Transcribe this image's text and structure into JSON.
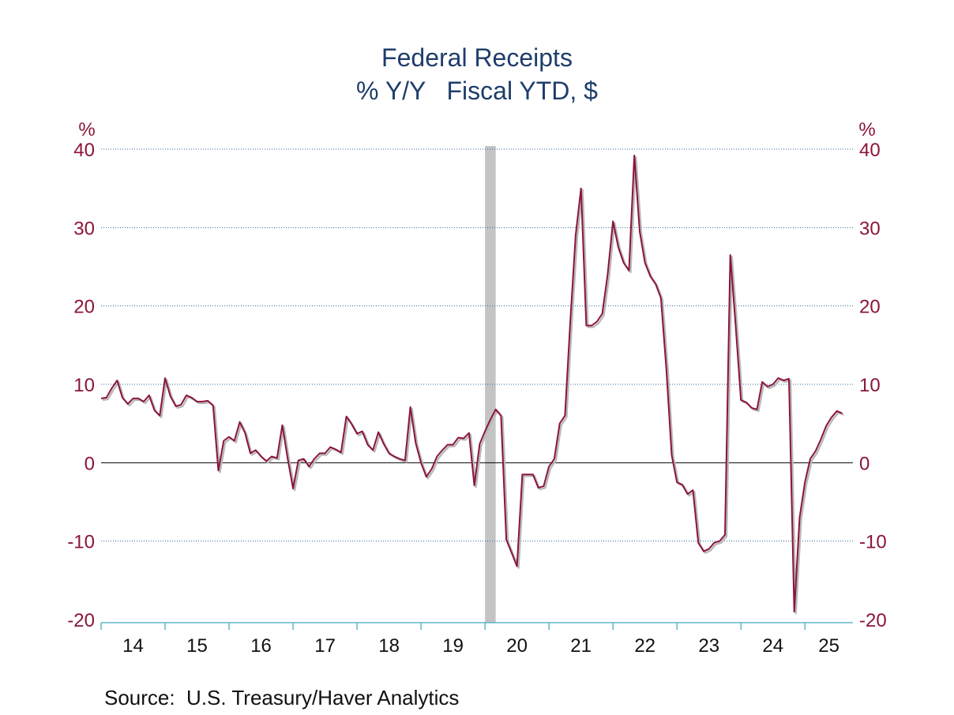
{
  "chart_data": {
    "type": "line",
    "title": "Federal Receipts",
    "subtitle": "% Y/Y   Fiscal YTD, $",
    "ylabel_left": "%",
    "ylabel_right": "%",
    "ylim": [
      -20,
      40
    ],
    "yticks": [
      -20,
      -10,
      0,
      10,
      20,
      30,
      40
    ],
    "xlim": [
      2014.0,
      2025.75
    ],
    "xticks": [
      "14",
      "15",
      "16",
      "17",
      "18",
      "19",
      "20",
      "21",
      "22",
      "23",
      "24",
      "25"
    ],
    "grid": true,
    "recession_shading": [
      [
        2020.0,
        2020.167
      ]
    ],
    "source": "Source:  U.S. Treasury/Haver Analytics",
    "colors": {
      "title": "#1f3d6b",
      "ticks": "#8b1538",
      "line": "#8b1538",
      "shadow": "#b8b8b8",
      "grid": "#2f6aa8",
      "xaxis": "#5fb7c9",
      "recession": "#c4c4c4"
    },
    "series": [
      {
        "x": [
          2014.0,
          2014.083,
          2014.167,
          2014.25,
          2014.333,
          2014.417,
          2014.5,
          2014.583,
          2014.667,
          2014.75,
          2014.833,
          2014.917,
          2015.0,
          2015.083,
          2015.167,
          2015.25,
          2015.333,
          2015.417,
          2015.5,
          2015.583,
          2015.667,
          2015.75,
          2015.833,
          2015.917,
          2016.0,
          2016.083,
          2016.167,
          2016.25,
          2016.333,
          2016.417,
          2016.5,
          2016.583,
          2016.667,
          2016.75,
          2016.833,
          2016.917,
          2017.0,
          2017.083,
          2017.167,
          2017.25,
          2017.333,
          2017.417,
          2017.5,
          2017.583,
          2017.667,
          2017.75,
          2017.833,
          2017.917,
          2018.0,
          2018.083,
          2018.167,
          2018.25,
          2018.333,
          2018.417,
          2018.5,
          2018.583,
          2018.667,
          2018.75,
          2018.833,
          2018.917,
          2019.0,
          2019.083,
          2019.167,
          2019.25,
          2019.333,
          2019.417,
          2019.5,
          2019.583,
          2019.667,
          2019.75,
          2019.833,
          2019.917,
          2020.0,
          2020.083,
          2020.167,
          2020.25,
          2020.333,
          2020.417,
          2020.5,
          2020.583,
          2020.667,
          2020.75,
          2020.833,
          2020.917,
          2021.0,
          2021.083,
          2021.167,
          2021.25,
          2021.333,
          2021.417,
          2021.5,
          2021.583,
          2021.667,
          2021.75,
          2021.833,
          2021.917,
          2022.0,
          2022.083,
          2022.167,
          2022.25,
          2022.333,
          2022.417,
          2022.5,
          2022.583,
          2022.667,
          2022.75,
          2022.833,
          2022.917,
          2023.0,
          2023.083,
          2023.167,
          2023.25,
          2023.333,
          2023.417,
          2023.5,
          2023.583,
          2023.667,
          2023.75,
          2023.833,
          2023.917,
          2024.0,
          2024.083,
          2024.167,
          2024.25,
          2024.333,
          2024.417,
          2024.5,
          2024.583,
          2024.667,
          2024.75,
          2024.833,
          2024.917,
          2025.0,
          2025.083,
          2025.167,
          2025.25,
          2025.333,
          2025.417,
          2025.5,
          2025.583
        ],
        "y": [
          8.2,
          8.3,
          9.5,
          10.5,
          8.3,
          7.5,
          8.2,
          8.2,
          7.8,
          8.6,
          6.7,
          6.0,
          10.8,
          8.5,
          7.2,
          7.4,
          8.6,
          8.3,
          7.8,
          7.8,
          7.9,
          7.3,
          -1.0,
          2.8,
          3.3,
          2.8,
          5.2,
          3.8,
          1.2,
          1.6,
          0.8,
          0.2,
          0.8,
          0.6,
          4.8,
          0.5,
          -3.3,
          0.3,
          0.5,
          -0.5,
          0.5,
          1.2,
          1.2,
          2.0,
          1.7,
          1.3,
          5.9,
          4.9,
          3.7,
          4.0,
          2.3,
          1.6,
          3.9,
          2.4,
          1.2,
          0.8,
          0.5,
          0.3,
          7.1,
          2.5,
          0.0,
          -1.8,
          -0.8,
          0.8,
          1.6,
          2.3,
          2.3,
          3.2,
          3.1,
          3.8,
          -2.9,
          2.4,
          4.0,
          5.5,
          6.8,
          6.0,
          -9.8,
          -11.5,
          -13.2,
          -1.5,
          -1.5,
          -1.5,
          -3.2,
          -3.0,
          -0.5,
          0.5,
          5.0,
          6.0,
          18.0,
          29.0,
          35.0,
          17.5,
          17.5,
          18.0,
          19.0,
          24.0,
          30.8,
          27.5,
          25.5,
          24.5,
          39.2,
          29.5,
          25.5,
          23.8,
          22.8,
          21.0,
          12.0,
          1.0,
          -2.5,
          -2.8,
          -4.0,
          -3.5,
          -10.2,
          -11.3,
          -11.0,
          -10.2,
          -10.0,
          -9.2,
          26.5,
          17.5,
          8.0,
          7.7,
          7.0,
          6.8,
          10.3,
          9.7,
          10.0,
          10.8,
          10.5,
          10.7,
          -19.0,
          -7.0,
          -2.5,
          0.5,
          1.5,
          3.0,
          4.7,
          5.8,
          6.6,
          6.3
        ]
      }
    ]
  }
}
